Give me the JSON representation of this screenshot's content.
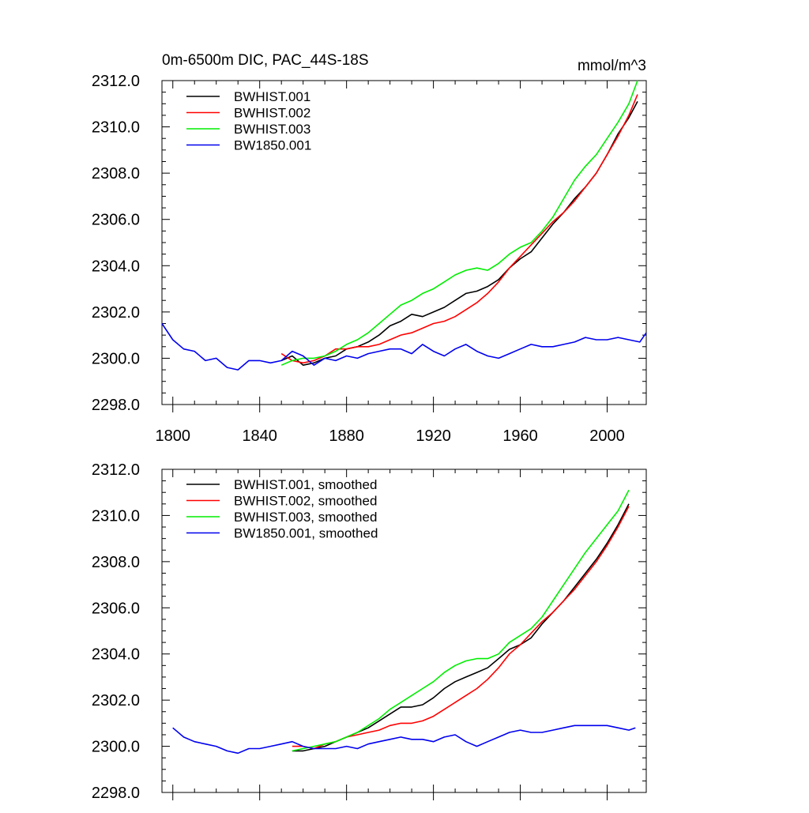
{
  "chart_data": [
    {
      "type": "line",
      "title": "0m-6500m DIC, PAC_44S-18S",
      "units": "mmol/m^3",
      "xlim": [
        1795,
        2018
      ],
      "ylim": [
        2298.0,
        2312.0
      ],
      "x_ticks": [
        1800,
        1840,
        1880,
        1920,
        1960,
        2000
      ],
      "y_ticks": [
        "2298.0",
        "2300.0",
        "2302.0",
        "2304.0",
        "2306.0",
        "2308.0",
        "2310.0",
        "2312.0"
      ],
      "legend_position": "top-left",
      "series": [
        {
          "name": "BWHIST.001",
          "color": "#000000",
          "x": [
            1850,
            1855,
            1860,
            1865,
            1870,
            1875,
            1880,
            1885,
            1890,
            1895,
            1900,
            1905,
            1910,
            1915,
            1920,
            1925,
            1930,
            1935,
            1940,
            1945,
            1950,
            1955,
            1960,
            1965,
            1970,
            1975,
            1980,
            1985,
            1990,
            1995,
            2000,
            2005,
            2010,
            2014
          ],
          "y": [
            2299.9,
            2300.1,
            2299.7,
            2299.8,
            2300.0,
            2300.1,
            2300.4,
            2300.5,
            2300.7,
            2301.0,
            2301.4,
            2301.6,
            2301.9,
            2301.8,
            2302.0,
            2302.2,
            2302.5,
            2302.8,
            2302.9,
            2303.1,
            2303.4,
            2303.9,
            2304.3,
            2304.6,
            2305.2,
            2305.8,
            2306.3,
            2306.9,
            2307.4,
            2308.0,
            2308.8,
            2309.7,
            2310.4,
            2311.1
          ]
        },
        {
          "name": "BWHIST.002",
          "color": "#ff0000",
          "x": [
            1850,
            1855,
            1860,
            1865,
            1870,
            1875,
            1880,
            1885,
            1890,
            1895,
            1900,
            1905,
            1910,
            1915,
            1920,
            1925,
            1930,
            1935,
            1940,
            1945,
            1950,
            1955,
            1960,
            1965,
            1970,
            1975,
            1980,
            1985,
            1990,
            1995,
            2000,
            2005,
            2010,
            2014
          ],
          "y": [
            2300.2,
            2299.9,
            2299.8,
            2299.9,
            2300.1,
            2300.4,
            2300.4,
            2300.5,
            2300.5,
            2300.6,
            2300.8,
            2301.0,
            2301.1,
            2301.3,
            2301.5,
            2301.6,
            2301.8,
            2302.1,
            2302.4,
            2302.8,
            2303.3,
            2303.9,
            2304.4,
            2304.9,
            2305.4,
            2305.9,
            2306.3,
            2306.8,
            2307.4,
            2308.0,
            2308.8,
            2309.6,
            2310.5,
            2311.4
          ]
        },
        {
          "name": "BWHIST.003",
          "color": "#00ee00",
          "x": [
            1850,
            1855,
            1860,
            1865,
            1870,
            1875,
            1880,
            1885,
            1890,
            1895,
            1900,
            1905,
            1910,
            1915,
            1920,
            1925,
            1930,
            1935,
            1940,
            1945,
            1950,
            1955,
            1960,
            1965,
            1970,
            1975,
            1980,
            1985,
            1990,
            1995,
            2000,
            2005,
            2010,
            2014
          ],
          "y": [
            2299.7,
            2299.9,
            2300.0,
            2300.0,
            2300.1,
            2300.3,
            2300.6,
            2300.8,
            2301.1,
            2301.5,
            2301.9,
            2302.3,
            2302.5,
            2302.8,
            2303.0,
            2303.3,
            2303.6,
            2303.8,
            2303.9,
            2303.8,
            2304.1,
            2304.5,
            2304.8,
            2305.0,
            2305.5,
            2306.1,
            2306.9,
            2307.7,
            2308.3,
            2308.8,
            2309.5,
            2310.2,
            2311.0,
            2312.0
          ]
        },
        {
          "name": "BW1850.001",
          "color": "#0000ee",
          "x": [
            1795,
            1800,
            1805,
            1810,
            1815,
            1820,
            1825,
            1830,
            1835,
            1840,
            1845,
            1850,
            1855,
            1860,
            1865,
            1870,
            1875,
            1880,
            1885,
            1890,
            1895,
            1900,
            1905,
            1910,
            1915,
            1920,
            1925,
            1930,
            1935,
            1940,
            1945,
            1950,
            1955,
            1960,
            1965,
            1970,
            1975,
            1980,
            1985,
            1990,
            1995,
            2000,
            2005,
            2010,
            2015,
            2018
          ],
          "y": [
            2301.5,
            2300.8,
            2300.4,
            2300.3,
            2299.9,
            2300.0,
            2299.6,
            2299.5,
            2299.9,
            2299.9,
            2299.8,
            2299.9,
            2300.3,
            2300.1,
            2299.7,
            2300.0,
            2299.9,
            2300.1,
            2300.0,
            2300.2,
            2300.3,
            2300.4,
            2300.4,
            2300.2,
            2300.6,
            2300.3,
            2300.1,
            2300.4,
            2300.6,
            2300.3,
            2300.1,
            2300.0,
            2300.2,
            2300.4,
            2300.6,
            2300.5,
            2300.5,
            2300.6,
            2300.7,
            2300.9,
            2300.8,
            2300.8,
            2300.9,
            2300.8,
            2300.7,
            2301.1
          ]
        }
      ]
    },
    {
      "type": "line",
      "xlim": [
        1795,
        2018
      ],
      "ylim": [
        2298.0,
        2312.0
      ],
      "x_ticks": [
        1800,
        1840,
        1880,
        1920,
        1960,
        2000
      ],
      "y_ticks": [
        "2298.0",
        "2300.0",
        "2302.0",
        "2304.0",
        "2306.0",
        "2308.0",
        "2310.0",
        "2312.0"
      ],
      "legend_position": "top-left",
      "series": [
        {
          "name": "BWHIST.001, smoothed",
          "color": "#000000",
          "x": [
            1855,
            1860,
            1865,
            1870,
            1875,
            1880,
            1885,
            1890,
            1895,
            1900,
            1905,
            1910,
            1915,
            1920,
            1925,
            1930,
            1935,
            1940,
            1945,
            1950,
            1955,
            1960,
            1965,
            1970,
            1975,
            1980,
            1985,
            1990,
            1995,
            2000,
            2005,
            2010
          ],
          "y": [
            2299.8,
            2299.8,
            2299.9,
            2300.0,
            2300.2,
            2300.4,
            2300.6,
            2300.8,
            2301.1,
            2301.4,
            2301.7,
            2301.7,
            2301.8,
            2302.1,
            2302.5,
            2302.8,
            2303.0,
            2303.2,
            2303.4,
            2303.8,
            2304.2,
            2304.4,
            2304.7,
            2305.3,
            2305.8,
            2306.3,
            2306.9,
            2307.5,
            2308.1,
            2308.8,
            2309.6,
            2310.5
          ]
        },
        {
          "name": "BWHIST.002, smoothed",
          "color": "#ff0000",
          "x": [
            1855,
            1860,
            1865,
            1870,
            1875,
            1880,
            1885,
            1890,
            1895,
            1900,
            1905,
            1910,
            1915,
            1920,
            1925,
            1930,
            1935,
            1940,
            1945,
            1950,
            1955,
            1960,
            1965,
            1970,
            1975,
            1980,
            1985,
            1990,
            1995,
            2000,
            2005,
            2010
          ],
          "y": [
            2300.0,
            2300.0,
            2299.9,
            2300.1,
            2300.2,
            2300.4,
            2300.5,
            2300.6,
            2300.7,
            2300.9,
            2301.0,
            2301.0,
            2301.1,
            2301.3,
            2301.6,
            2301.9,
            2302.2,
            2302.5,
            2302.9,
            2303.4,
            2304.0,
            2304.4,
            2304.9,
            2305.4,
            2305.8,
            2306.3,
            2306.8,
            2307.4,
            2308.0,
            2308.7,
            2309.5,
            2310.4
          ]
        },
        {
          "name": "BWHIST.003, smoothed",
          "color": "#00ee00",
          "x": [
            1855,
            1860,
            1865,
            1870,
            1875,
            1880,
            1885,
            1890,
            1895,
            1900,
            1905,
            1910,
            1915,
            1920,
            1925,
            1930,
            1935,
            1940,
            1945,
            1950,
            1955,
            1960,
            1965,
            1970,
            1975,
            1980,
            1985,
            1990,
            1995,
            2000,
            2005,
            2010
          ],
          "y": [
            2299.8,
            2299.9,
            2300.0,
            2300.1,
            2300.2,
            2300.4,
            2300.6,
            2300.9,
            2301.2,
            2301.6,
            2301.9,
            2302.2,
            2302.5,
            2302.8,
            2303.2,
            2303.5,
            2303.7,
            2303.8,
            2303.8,
            2304.0,
            2304.5,
            2304.8,
            2305.1,
            2305.6,
            2306.3,
            2307.0,
            2307.7,
            2308.4,
            2309.0,
            2309.6,
            2310.2,
            2311.1
          ]
        },
        {
          "name": "BW1850.001, smoothed",
          "color": "#0000ee",
          "x": [
            1800,
            1805,
            1810,
            1815,
            1820,
            1825,
            1830,
            1835,
            1840,
            1845,
            1850,
            1855,
            1860,
            1865,
            1870,
            1875,
            1880,
            1885,
            1890,
            1895,
            1900,
            1905,
            1910,
            1915,
            1920,
            1925,
            1930,
            1935,
            1940,
            1945,
            1950,
            1955,
            1960,
            1965,
            1970,
            1975,
            1980,
            1985,
            1990,
            1995,
            2000,
            2005,
            2010,
            2013
          ],
          "y": [
            2300.8,
            2300.4,
            2300.2,
            2300.1,
            2300.0,
            2299.8,
            2299.7,
            2299.9,
            2299.9,
            2300.0,
            2300.1,
            2300.2,
            2300.0,
            2299.9,
            2299.9,
            2299.9,
            2300.0,
            2299.9,
            2300.1,
            2300.2,
            2300.3,
            2300.4,
            2300.3,
            2300.3,
            2300.2,
            2300.4,
            2300.5,
            2300.2,
            2300.0,
            2300.2,
            2300.4,
            2300.6,
            2300.7,
            2300.6,
            2300.6,
            2300.7,
            2300.8,
            2300.9,
            2300.9,
            2300.9,
            2300.9,
            2300.8,
            2300.7,
            2300.8
          ]
        }
      ]
    }
  ]
}
